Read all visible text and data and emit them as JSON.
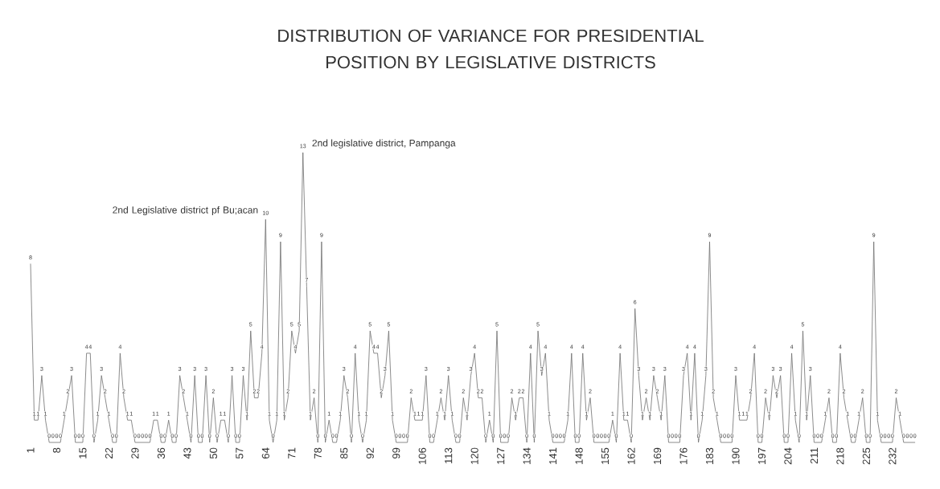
{
  "chart_data": {
    "type": "line",
    "title": "DISTRIBUTION OF VARIANCE FOR PRESIDENTIAL POSITION BY LEGISLATIVE DISTRICTS",
    "categories": [
      "1",
      null,
      null,
      null,
      null,
      null,
      null,
      "8",
      null,
      null,
      null,
      null,
      null,
      null,
      "15",
      null,
      null,
      null,
      null,
      null,
      null,
      "22",
      null,
      null,
      null,
      null,
      null,
      null,
      "29",
      null,
      null,
      null,
      null,
      null,
      null,
      "36",
      null,
      null,
      null,
      null,
      null,
      null,
      "43",
      null,
      null,
      null,
      null,
      null,
      null,
      "50",
      null,
      null,
      null,
      null,
      null,
      null,
      "57",
      null,
      null,
      null,
      null,
      null,
      null,
      "64",
      null,
      null,
      null,
      null,
      null,
      null,
      "71",
      null,
      null,
      null,
      null,
      null,
      null,
      "78",
      null,
      null,
      null,
      null,
      null,
      null,
      "85",
      null,
      null,
      null,
      null,
      null,
      null,
      "92",
      null,
      null,
      null,
      null,
      null,
      null,
      "99",
      null,
      null,
      null,
      null,
      null,
      null,
      "106",
      null,
      null,
      null,
      null,
      null,
      null,
      "113",
      null,
      null,
      null,
      null,
      null,
      null,
      "120",
      null,
      null,
      null,
      null,
      null,
      null,
      "127",
      null,
      null,
      null,
      null,
      null,
      null,
      "134",
      null,
      null,
      null,
      null,
      null,
      null,
      "141",
      null,
      null,
      null,
      null,
      null,
      null,
      "148",
      null,
      null,
      null,
      null,
      null,
      null,
      "155",
      null,
      null,
      null,
      null,
      null,
      null,
      "162",
      null,
      null,
      null,
      null,
      null,
      null,
      "169",
      null,
      null,
      null,
      null,
      null,
      null,
      "176",
      null,
      null,
      null,
      null,
      null,
      null,
      "183",
      null,
      null,
      null,
      null,
      null,
      null,
      "190",
      null,
      null,
      null,
      null,
      null,
      null,
      "197",
      null,
      null,
      null,
      null,
      null,
      null,
      "204",
      null,
      null,
      null,
      null,
      null,
      null,
      "211",
      null,
      null,
      null,
      null,
      null,
      null,
      "218",
      null,
      null,
      null,
      null,
      null,
      null,
      "225",
      null,
      null,
      null,
      null,
      null,
      null,
      "232",
      null,
      null,
      null,
      null,
      null,
      null
    ],
    "values": [
      8,
      1,
      1,
      3,
      1,
      0,
      0,
      0,
      0,
      1,
      2,
      3,
      0,
      0,
      0,
      4,
      4,
      0,
      1,
      3,
      2,
      1,
      0,
      0,
      4,
      2,
      1,
      1,
      0,
      0,
      0,
      0,
      0,
      1,
      1,
      0,
      0,
      1,
      0,
      0,
      3,
      2,
      1,
      0,
      3,
      0,
      0,
      3,
      0,
      2,
      0,
      1,
      1,
      0,
      3,
      0,
      0,
      3,
      1,
      5,
      2,
      2,
      4,
      10,
      1,
      0,
      1,
      9,
      1,
      2,
      5,
      4,
      5,
      13,
      7,
      1,
      2,
      0,
      9,
      0,
      1,
      0,
      0,
      1,
      3,
      2,
      0,
      4,
      1,
      0,
      1,
      5,
      4,
      4,
      2,
      3,
      5,
      1,
      0,
      0,
      0,
      0,
      2,
      1,
      1,
      1,
      3,
      0,
      0,
      1,
      2,
      1,
      3,
      1,
      0,
      0,
      2,
      1,
      3,
      4,
      2,
      2,
      0,
      1,
      0,
      5,
      0,
      0,
      0,
      2,
      1,
      2,
      2,
      0,
      4,
      0,
      5,
      3,
      4,
      1,
      0,
      0,
      0,
      0,
      1,
      4,
      0,
      0,
      4,
      1,
      2,
      0,
      0,
      0,
      0,
      0,
      1,
      0,
      4,
      1,
      1,
      0,
      6,
      3,
      1,
      2,
      1,
      3,
      2,
      1,
      3,
      0,
      0,
      0,
      0,
      3,
      4,
      1,
      4,
      0,
      1,
      3,
      9,
      2,
      1,
      0,
      0,
      0,
      0,
      3,
      1,
      1,
      1,
      2,
      4,
      0,
      0,
      2,
      1,
      3,
      2,
      3,
      0,
      0,
      4,
      1,
      0,
      5,
      1,
      3,
      0,
      0,
      0,
      1,
      2,
      0,
      0,
      4,
      2,
      1,
      0,
      0,
      1,
      2,
      0,
      0,
      9,
      1,
      0,
      0,
      0,
      0,
      2,
      1,
      0,
      0,
      0,
      0
    ],
    "color": "#6e6e6e",
    "data_labels": true,
    "annotations": [
      {
        "text": "2nd Legislative district pf Bu;acan",
        "x": "64",
        "y": 10
      },
      "2nd legislative district, Pampanga"
    ]
  }
}
